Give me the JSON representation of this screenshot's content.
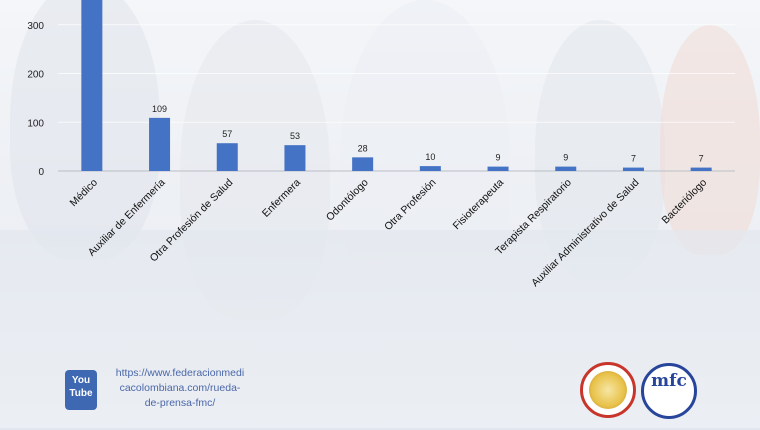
{
  "chart_data": {
    "type": "bar",
    "categories": [
      "Médico",
      "Auxiliar de Enfermería",
      "Otra Profesión de Salud",
      "Enfermera",
      "Odontólogo",
      "Otra Profesión",
      "Fisioterapeuta",
      "Terapista Respiratorio",
      "Auxiliar Administrativo de Salud",
      "Bacteriólogo"
    ],
    "values": [
      375,
      109,
      57,
      53,
      28,
      10,
      9,
      9,
      7,
      7
    ],
    "data_labels": [
      "",
      "109",
      "57",
      "53",
      "28",
      "10",
      "9",
      "9",
      "7",
      "7"
    ],
    "y_ticks": [
      "0",
      "100",
      "200",
      "300"
    ],
    "ylim": [
      0,
      375
    ],
    "bar_color": "#4472c4",
    "grid": true
  },
  "footer": {
    "youtube_icon": "youtube-icon",
    "youtube_line1": "You",
    "youtube_line2": "Tube",
    "url_lines": [
      "https://www.federacionmedi",
      "cacolombiana.com/rueda-",
      "de-prensa-fmc/"
    ],
    "logo_right_text": "mfc"
  }
}
